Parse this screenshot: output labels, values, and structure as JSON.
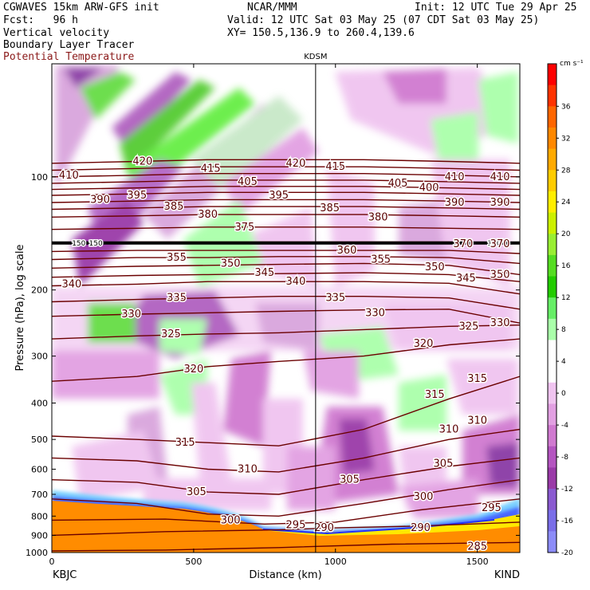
{
  "header": {
    "title": "CGWAVES 15km ARW-GFS init",
    "org": "NCAR/MMM",
    "init": "Init: 12 UTC Tue 29 Apr 25",
    "fcst": "Fcst:   96 h",
    "valid": "Valid: 12 UTC Sat 03 May 25 (07 CDT Sat 03 May 25)",
    "xy": "XY= 150.5,136.9 to 260.4,139.6",
    "field1": "Vertical velocity",
    "field2": "Boundary Layer Tracer",
    "field3": "Potential Temperature",
    "field3_color": "#8b1a1a"
  },
  "chart_data": {
    "type": "heatmap",
    "title": "",
    "xlabel": "Distance (km)",
    "ylabel": "Pressure (hPa), log scale",
    "xlim": [
      0,
      1650
    ],
    "ylim": [
      1000,
      50
    ],
    "y_scale": "log",
    "x_ticks": [
      0,
      500,
      1000,
      1500
    ],
    "x_tick_labels": [
      "0",
      "500",
      "1000",
      "1500"
    ],
    "y_ticks": [
      100,
      200,
      300,
      400,
      500,
      600,
      700,
      800,
      900,
      1000
    ],
    "endpoint_labels": {
      "left": "KBJC",
      "right": "KIND"
    },
    "marker": {
      "label": "KDSM",
      "x": 930
    },
    "colorbar": {
      "units": "cm s⁻¹",
      "tick_labels": [
        "36",
        "32",
        "28",
        "24",
        "20",
        "16",
        "12",
        "8",
        "4",
        "0",
        "-4",
        "-8",
        "-12",
        "-16",
        "-20"
      ],
      "colors": [
        "#ff0000",
        "#ff3300",
        "#ff6600",
        "#ff8800",
        "#ffaa00",
        "#ffcc00",
        "#ffee00",
        "#ccf000",
        "#99ee33",
        "#55dd22",
        "#22cc00",
        "#66ee66",
        "#aaffaa",
        "#ffffff",
        "#ffffff",
        "#f0c4f0",
        "#e2a0e2",
        "#d07ad0",
        "#b455c0",
        "#9a3aa8",
        "#8a5ad0",
        "#7a6ee8",
        "#8c8cf8"
      ]
    },
    "theta_series": [
      {
        "theta": 285,
        "x": [
          0,
          400,
          800,
          1200,
          1650
        ],
        "p": [
          990,
          985,
          970,
          950,
          940
        ]
      },
      {
        "theta": 290,
        "x": [
          0,
          400,
          800,
          1000,
          1300,
          1650
        ],
        "p": [
          900,
          880,
          870,
          860,
          850,
          830
        ]
      },
      {
        "theta": 295,
        "x": [
          0,
          400,
          750,
          1000,
          1300,
          1650
        ],
        "p": [
          820,
          815,
          840,
          830,
          770,
          720
        ]
      },
      {
        "theta": 300,
        "x": [
          0,
          300,
          550,
          800,
          1100,
          1400,
          1650
        ],
        "p": [
          720,
          740,
          790,
          800,
          740,
          680,
          640
        ]
      },
      {
        "theta": 305,
        "x": [
          0,
          300,
          550,
          800,
          1100,
          1400,
          1650
        ],
        "p": [
          640,
          650,
          690,
          700,
          640,
          590,
          560
        ]
      },
      {
        "theta": 310,
        "x": [
          0,
          300,
          550,
          800,
          1100,
          1400,
          1650
        ],
        "p": [
          560,
          570,
          600,
          610,
          560,
          500,
          470
        ]
      },
      {
        "theta": 315,
        "x": [
          0,
          300,
          550,
          800,
          1100,
          1400,
          1650
        ],
        "p": [
          490,
          500,
          510,
          520,
          470,
          390,
          340
        ]
      },
      {
        "theta": 320,
        "x": [
          0,
          300,
          550,
          800,
          1100,
          1400,
          1650
        ],
        "p": [
          350,
          340,
          320,
          310,
          300,
          280,
          270
        ]
      },
      {
        "theta": 325,
        "x": [
          0,
          300,
          550,
          800,
          1100,
          1400,
          1650
        ],
        "p": [
          270,
          265,
          262,
          260,
          255,
          250,
          248
        ]
      },
      {
        "theta": 330,
        "x": [
          0,
          300,
          550,
          800,
          1100,
          1400,
          1650
        ],
        "p": [
          235,
          232,
          230,
          228,
          226,
          225,
          245
        ]
      },
      {
        "theta": 335,
        "x": [
          0,
          300,
          550,
          800,
          1100,
          1400,
          1650
        ],
        "p": [
          215,
          212,
          210,
          208,
          208,
          210,
          225
        ]
      },
      {
        "theta": 340,
        "x": [
          0,
          300,
          550,
          800,
          1100,
          1400,
          1650
        ],
        "p": [
          195,
          193,
          190,
          190,
          190,
          192,
          205
        ]
      },
      {
        "theta": 345,
        "x": [
          0,
          300,
          550,
          800,
          1100,
          1400,
          1650
        ],
        "p": [
          185,
          183,
          182,
          181,
          180,
          182,
          190
        ]
      },
      {
        "theta": 350,
        "x": [
          0,
          300,
          550,
          800,
          1100,
          1400,
          1650
        ],
        "p": [
          175,
          173,
          172,
          171,
          170,
          172,
          182
        ]
      },
      {
        "theta": 355,
        "x": [
          0,
          300,
          550,
          800,
          1100,
          1400,
          1650
        ],
        "p": [
          166,
          164,
          164,
          163,
          163,
          164,
          170
        ]
      },
      {
        "theta": 360,
        "x": [
          0,
          300,
          550,
          800,
          1100,
          1400,
          1650
        ],
        "p": [
          158,
          157,
          157,
          157,
          157,
          157,
          160
        ]
      },
      {
        "theta": 370,
        "x": [
          0,
          300,
          550,
          800,
          1100,
          1400,
          1650
        ],
        "p": [
          150,
          149,
          149,
          149,
          149,
          149,
          150
        ]
      },
      {
        "theta": 375,
        "x": [
          0,
          300,
          550,
          800,
          1100,
          1400,
          1650
        ],
        "p": [
          138,
          137,
          136,
          136,
          136,
          137,
          138
        ]
      },
      {
        "theta": 380,
        "x": [
          0,
          300,
          550,
          800,
          1100,
          1400,
          1650
        ],
        "p": [
          128,
          127,
          126,
          126,
          126,
          127,
          128
        ]
      },
      {
        "theta": 385,
        "x": [
          0,
          300,
          550,
          800,
          1100,
          1400,
          1650
        ],
        "p": [
          122,
          121,
          120,
          120,
          120,
          121,
          122
        ]
      },
      {
        "theta": 390,
        "x": [
          0,
          300,
          550,
          800,
          1100,
          1400,
          1650
        ],
        "p": [
          117,
          116,
          115,
          115,
          115,
          116,
          117
        ]
      },
      {
        "theta": 395,
        "x": [
          0,
          300,
          550,
          800,
          1100,
          1400,
          1650
        ],
        "p": [
          112,
          111,
          110,
          110,
          110,
          111,
          112
        ]
      },
      {
        "theta": 400,
        "x": [
          0,
          300,
          550,
          800,
          1100,
          1400,
          1650
        ],
        "p": [
          108,
          107,
          106,
          106,
          106,
          107,
          108
        ]
      },
      {
        "theta": 405,
        "x": [
          0,
          300,
          550,
          800,
          1100,
          1400,
          1650
        ],
        "p": [
          104,
          103,
          102,
          102,
          102,
          103,
          104
        ]
      },
      {
        "theta": 410,
        "x": [
          0,
          300,
          550,
          800,
          1100,
          1400,
          1650
        ],
        "p": [
          100,
          99,
          98,
          98,
          98,
          99,
          100
        ]
      },
      {
        "theta": 415,
        "x": [
          0,
          300,
          550,
          800,
          1100,
          1400,
          1650
        ],
        "p": [
          96,
          95,
          94,
          94,
          94,
          95,
          96
        ]
      },
      {
        "theta": 420,
        "x": [
          0,
          300,
          550,
          800,
          1100,
          1400,
          1650
        ],
        "p": [
          92,
          91,
          90,
          90,
          90,
          91,
          92
        ]
      }
    ],
    "theta_labels": [
      {
        "text": "420",
        "x": 320,
        "p": 91
      },
      {
        "text": "410",
        "x": 60,
        "p": 99
      },
      {
        "text": "415",
        "x": 560,
        "p": 95
      },
      {
        "text": "420",
        "x": 860,
        "p": 92
      },
      {
        "text": "415",
        "x": 1000,
        "p": 94
      },
      {
        "text": "410",
        "x": 1420,
        "p": 100
      },
      {
        "text": "410",
        "x": 1580,
        "p": 100
      },
      {
        "text": "405",
        "x": 690,
        "p": 103
      },
      {
        "text": "405",
        "x": 1220,
        "p": 104
      },
      {
        "text": "400",
        "x": 1330,
        "p": 107
      },
      {
        "text": "390",
        "x": 170,
        "p": 115
      },
      {
        "text": "395",
        "x": 300,
        "p": 112
      },
      {
        "text": "395",
        "x": 800,
        "p": 112
      },
      {
        "text": "385",
        "x": 430,
        "p": 120
      },
      {
        "text": "380",
        "x": 550,
        "p": 126
      },
      {
        "text": "375",
        "x": 680,
        "p": 136
      },
      {
        "text": "385",
        "x": 980,
        "p": 121
      },
      {
        "text": "380",
        "x": 1150,
        "p": 128
      },
      {
        "text": "390",
        "x": 1420,
        "p": 117
      },
      {
        "text": "390",
        "x": 1580,
        "p": 117
      },
      {
        "text": "355",
        "x": 440,
        "p": 164
      },
      {
        "text": "350",
        "x": 630,
        "p": 170
      },
      {
        "text": "345",
        "x": 750,
        "p": 180
      },
      {
        "text": "340",
        "x": 860,
        "p": 190
      },
      {
        "text": "360",
        "x": 1040,
        "p": 157
      },
      {
        "text": "355",
        "x": 1160,
        "p": 166
      },
      {
        "text": "350",
        "x": 1350,
        "p": 174
      },
      {
        "text": "370",
        "x": 1450,
        "p": 151
      },
      {
        "text": "370",
        "x": 1580,
        "p": 151
      },
      {
        "text": "345",
        "x": 1460,
        "p": 186
      },
      {
        "text": "350",
        "x": 1580,
        "p": 182
      },
      {
        "text": "340",
        "x": 70,
        "p": 193
      },
      {
        "text": "335",
        "x": 440,
        "p": 210
      },
      {
        "text": "335",
        "x": 1000,
        "p": 210
      },
      {
        "text": "330",
        "x": 280,
        "p": 232
      },
      {
        "text": "330",
        "x": 1140,
        "p": 230
      },
      {
        "text": "325",
        "x": 420,
        "p": 262
      },
      {
        "text": "325",
        "x": 1470,
        "p": 250
      },
      {
        "text": "330",
        "x": 1580,
        "p": 245
      },
      {
        "text": "320",
        "x": 500,
        "p": 325
      },
      {
        "text": "320",
        "x": 1310,
        "p": 278
      },
      {
        "text": "315",
        "x": 1350,
        "p": 380
      },
      {
        "text": "315",
        "x": 1500,
        "p": 345
      },
      {
        "text": "310",
        "x": 1400,
        "p": 470
      },
      {
        "text": "310",
        "x": 1500,
        "p": 445
      },
      {
        "text": "315",
        "x": 470,
        "p": 510
      },
      {
        "text": "310",
        "x": 690,
        "p": 600
      },
      {
        "text": "305",
        "x": 1050,
        "p": 640
      },
      {
        "text": "305",
        "x": 1380,
        "p": 580
      },
      {
        "text": "305",
        "x": 510,
        "p": 690
      },
      {
        "text": "300",
        "x": 1310,
        "p": 710
      },
      {
        "text": "300",
        "x": 630,
        "p": 820
      },
      {
        "text": "295",
        "x": 860,
        "p": 845
      },
      {
        "text": "290",
        "x": 960,
        "p": 860
      },
      {
        "text": "290",
        "x": 1300,
        "p": 860
      },
      {
        "text": "295",
        "x": 1550,
        "p": 760
      },
      {
        "text": "285",
        "x": 1500,
        "p": 965
      }
    ],
    "tracer_label": "150"
  }
}
